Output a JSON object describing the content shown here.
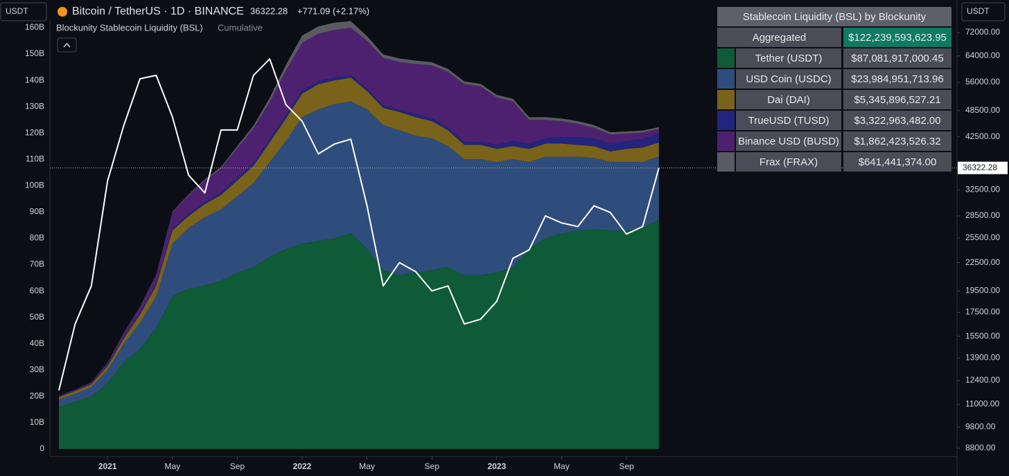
{
  "chart_data": {
    "type": "stacked-area",
    "symbol_title": "Bitcoin / TetherUS · 1D · BINANCE",
    "price": 36322.28,
    "change": "+771.09 (+2.17%)",
    "indicator_title": "Blockunity Stablecoin Liquidity (BSL)",
    "indicator_mode": "Cumulative",
    "left_currency": "USDT",
    "right_currency": "USDT",
    "x": [
      "2020-10",
      "2020-11",
      "2020-12",
      "2021-01",
      "2021-02",
      "2021-03",
      "2021-04",
      "2021-05",
      "2021-06",
      "2021-07",
      "2021-08",
      "2021-09",
      "2021-10",
      "2021-11",
      "2021-12",
      "2022-01",
      "2022-02",
      "2022-03",
      "2022-04",
      "2022-05",
      "2022-06",
      "2022-07",
      "2022-08",
      "2022-09",
      "2022-10",
      "2022-11",
      "2022-12",
      "2023-01",
      "2023-02",
      "2023-03",
      "2023-04",
      "2023-05",
      "2023-06",
      "2023-07",
      "2023-08",
      "2023-09",
      "2023-10",
      "2023-11"
    ],
    "xticks": [
      {
        "value": "2021-01",
        "label": "2021"
      },
      {
        "value": "2021-05",
        "label": "May"
      },
      {
        "value": "2021-09",
        "label": "Sep"
      },
      {
        "value": "2022-01",
        "label": "2022"
      },
      {
        "value": "2022-05",
        "label": "May"
      },
      {
        "value": "2022-09",
        "label": "Sep"
      },
      {
        "value": "2023-01",
        "label": "2023"
      },
      {
        "value": "2023-05",
        "label": "May"
      },
      {
        "value": "2023-09",
        "label": "Sep"
      }
    ],
    "ylim": [
      0,
      160
    ],
    "yticks": [
      {
        "value": 0,
        "label": "0"
      },
      {
        "value": 10,
        "label": "10B"
      },
      {
        "value": 20,
        "label": "20B"
      },
      {
        "value": 30,
        "label": "30B"
      },
      {
        "value": 40,
        "label": "40B"
      },
      {
        "value": 50,
        "label": "50B"
      },
      {
        "value": 60,
        "label": "60B"
      },
      {
        "value": 70,
        "label": "70B"
      },
      {
        "value": 80,
        "label": "80B"
      },
      {
        "value": 90,
        "label": "90B"
      },
      {
        "value": 100,
        "label": "100B"
      },
      {
        "value": 110,
        "label": "110B"
      },
      {
        "value": 120,
        "label": "120B"
      },
      {
        "value": 130,
        "label": "130B"
      },
      {
        "value": 140,
        "label": "140B"
      },
      {
        "value": 150,
        "label": "150B"
      },
      {
        "value": 160,
        "label": "160B"
      }
    ],
    "y2lim": [
      8770,
      73800
    ],
    "y2_log": true,
    "y2ticks": [
      {
        "value": 72000,
        "label": "72000.00"
      },
      {
        "value": 64000,
        "label": "64000.00"
      },
      {
        "value": 56000,
        "label": "56000.00"
      },
      {
        "value": 48500,
        "label": "48500.00"
      },
      {
        "value": 42500,
        "label": "42500.00"
      },
      {
        "value": 32500,
        "label": "32500.00"
      },
      {
        "value": 28500,
        "label": "28500.00"
      },
      {
        "value": 25500,
        "label": "25500.00"
      },
      {
        "value": 22500,
        "label": "22500.00"
      },
      {
        "value": 19500,
        "label": "19500.00"
      },
      {
        "value": 17500,
        "label": "17500.00"
      },
      {
        "value": 15500,
        "label": "15500.00"
      },
      {
        "value": 13900,
        "label": "13900.00"
      },
      {
        "value": 12400,
        "label": "12400.00"
      },
      {
        "value": 11000,
        "label": "11000.00"
      },
      {
        "value": 9800,
        "label": "9800.00"
      },
      {
        "value": 8800,
        "label": "8800.00"
      }
    ],
    "grid": false,
    "series": [
      {
        "name": "Tether (USDT)",
        "color": "#0f5a37",
        "values": [
          16,
          18,
          20,
          25,
          33,
          38,
          46,
          58,
          61,
          62,
          64,
          67,
          69,
          73,
          76,
          78,
          79,
          80,
          82,
          76,
          68,
          66,
          67,
          68,
          69,
          66,
          66,
          67,
          69,
          76,
          80,
          82,
          83,
          83.5,
          83,
          83,
          84,
          87.08
        ]
      },
      {
        "name": "USD Coin (USDC)",
        "color": "#2f4d7c",
        "values": [
          2.8,
          3,
          3.5,
          5,
          7,
          10,
          12,
          20,
          23,
          26,
          27,
          29,
          32,
          36,
          41,
          48,
          50,
          51,
          50,
          53,
          55,
          55,
          52,
          50,
          46,
          44,
          44,
          42,
          41,
          33,
          31,
          29,
          28,
          27,
          26,
          26,
          25,
          23.98
        ]
      },
      {
        "name": "Dai (DAI)",
        "color": "#79621a",
        "values": [
          0.9,
          1,
          1.1,
          1.5,
          2,
          3,
          4,
          5,
          4.5,
          5,
          5.5,
          6,
          6.5,
          7.5,
          8.5,
          9,
          9.5,
          9,
          9,
          7,
          6.5,
          7,
          7,
          6.5,
          6,
          5.5,
          5.5,
          5,
          5,
          5,
          5,
          5,
          4.5,
          4.5,
          4,
          5,
          5.5,
          5.35
        ]
      },
      {
        "name": "TrueUSD (TUSD)",
        "color": "#23247c",
        "values": [
          0.3,
          0.3,
          0.3,
          0.4,
          0.5,
          0.5,
          0.5,
          0.8,
          0.9,
          1,
          1.1,
          1.2,
          1.3,
          1.3,
          1.3,
          1.3,
          1.2,
          1.1,
          1,
          1,
          1,
          1,
          1.2,
          1.2,
          1.2,
          1.1,
          1.2,
          1.5,
          2,
          2,
          2,
          2.5,
          3,
          3,
          3,
          3,
          3.2,
          3.32
        ]
      },
      {
        "name": "Binance USD (BUSD)",
        "color": "#4e2170",
        "values": [
          0.2,
          0.3,
          0.5,
          0.8,
          1.5,
          2.5,
          3.5,
          6,
          7,
          8,
          9,
          11,
          13,
          14,
          17,
          18,
          18,
          18,
          18,
          18,
          18,
          18,
          19,
          20,
          21,
          22,
          21,
          18,
          15,
          9,
          7,
          6,
          5,
          4,
          3.5,
          2.8,
          2.5,
          1.86
        ]
      },
      {
        "name": "Frax (FRAX)",
        "color": "#5a5b60",
        "values": [
          0,
          0,
          0,
          0.1,
          0.1,
          0.1,
          0.2,
          0.3,
          0.3,
          0.4,
          0.5,
          0.8,
          1,
          1.5,
          2,
          2.7,
          2.8,
          2.8,
          2.5,
          1.8,
          1.3,
          1.3,
          1.3,
          1.2,
          1.1,
          1,
          1,
          1,
          1,
          1,
          1,
          1,
          1,
          1,
          0.8,
          0.8,
          0.7,
          0.64
        ]
      }
    ],
    "btc": {
      "color": "#ffffff",
      "axis": "y2",
      "values": [
        11800,
        16500,
        20000,
        34000,
        45000,
        57000,
        58000,
        47000,
        35000,
        32000,
        44000,
        44000,
        58000,
        63000,
        50000,
        46000,
        39000,
        41000,
        42000,
        30000,
        20000,
        22500,
        21500,
        19500,
        20000,
        16500,
        16900,
        18500,
        23000,
        24000,
        28500,
        27500,
        27000,
        30000,
        29000,
        26000,
        27000,
        36322.28
      ]
    },
    "table": {
      "title": "Stablecoin Liquidity (BSL) by Blockunity",
      "aggregate_label": "Aggregated",
      "aggregate_value": "$122,239,593,623.95",
      "values": [
        "$87,081,917,000.45",
        "$23,984,951,713.96",
        "$5,345,896,527.21",
        "$3,322,963,482.00",
        "$1,862,423,526.32",
        "$641,441,374.00"
      ]
    }
  }
}
